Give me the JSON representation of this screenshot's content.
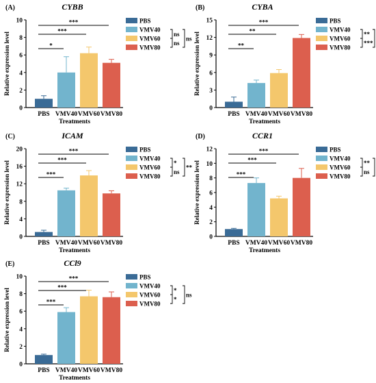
{
  "colors": {
    "PBS": "#3a6b96",
    "VMV40": "#72b4cd",
    "VMV60": "#f4c76c",
    "VMV80": "#dc5f4e",
    "axis": "#000000"
  },
  "chart_data": [
    {
      "type": "bar",
      "panel_label": "(A)",
      "title": "CYBB",
      "xlabel": "Treatments",
      "ylabel": "Relative expression level",
      "categories": [
        "PBS",
        "VMV40",
        "VMV60",
        "VMV80"
      ],
      "values": [
        1.0,
        4.0,
        6.2,
        5.1
      ],
      "errors": [
        0.35,
        1.8,
        0.7,
        0.4
      ],
      "ylim": [
        0,
        10
      ],
      "yticks": [
        "0",
        "2",
        "4",
        "6",
        "8",
        "10"
      ],
      "legend": [
        "PBS",
        "VMV40",
        "VMV60",
        "VMV80"
      ],
      "legend_position": "top-right",
      "significance": [
        {
          "from": "PBS",
          "to": "VMV40",
          "label": "*"
        },
        {
          "from": "PBS",
          "to": "VMV60",
          "label": "***"
        },
        {
          "from": "PBS",
          "to": "VMV80",
          "label": "***"
        }
      ],
      "legend_brackets": [
        {
          "from": "VMV40",
          "to": "VMV60",
          "label": "ns"
        },
        {
          "from": "VMV60",
          "to": "VMV80",
          "label": "ns"
        },
        {
          "from": "VMV40",
          "to": "VMV80",
          "label": "ns"
        }
      ]
    },
    {
      "type": "bar",
      "panel_label": "(B)",
      "title": "CYBA",
      "xlabel": "Treatments",
      "ylabel": "Relative expression level",
      "categories": [
        "PBS",
        "VMV40",
        "VMV60",
        "VMV80"
      ],
      "values": [
        1.0,
        4.2,
        5.9,
        11.9
      ],
      "errors": [
        0.8,
        0.5,
        0.6,
        0.6
      ],
      "ylim": [
        0,
        15
      ],
      "yticks": [
        "0",
        "3",
        "6",
        "9",
        "12",
        "15"
      ],
      "legend": [
        "PBS",
        "VMV40",
        "VMV60",
        "VMV80"
      ],
      "legend_position": "top-right",
      "significance": [
        {
          "from": "PBS",
          "to": "VMV40",
          "label": "**"
        },
        {
          "from": "PBS",
          "to": "VMV60",
          "label": "**"
        },
        {
          "from": "PBS",
          "to": "VMV80",
          "label": "***"
        }
      ],
      "legend_brackets": [
        {
          "from": "VMV40",
          "to": "VMV60",
          "label": "**"
        },
        {
          "from": "VMV60",
          "to": "VMV80",
          "label": "***"
        },
        {
          "from": "VMV40",
          "to": "VMV80",
          "label": "***"
        }
      ]
    },
    {
      "type": "bar",
      "panel_label": "(C)",
      "title": "ICAM",
      "xlabel": "Treatments",
      "ylabel": "Relative expression level",
      "categories": [
        "PBS",
        "VMV40",
        "VMV60",
        "VMV80"
      ],
      "values": [
        1.0,
        10.5,
        13.9,
        9.8
      ],
      "errors": [
        0.4,
        0.5,
        1.1,
        0.6
      ],
      "ylim": [
        0,
        20
      ],
      "yticks": [
        "0",
        "4",
        "8",
        "12",
        "16",
        "20"
      ],
      "legend": [
        "PBS",
        "VMV40",
        "VMV60",
        "VMV80"
      ],
      "legend_position": "top-right",
      "significance": [
        {
          "from": "PBS",
          "to": "VMV40",
          "label": "***"
        },
        {
          "from": "PBS",
          "to": "VMV60",
          "label": "***"
        },
        {
          "from": "PBS",
          "to": "VMV80",
          "label": "***"
        }
      ],
      "legend_brackets": [
        {
          "from": "VMV40",
          "to": "VMV60",
          "label": "*"
        },
        {
          "from": "VMV60",
          "to": "VMV80",
          "label": "ns"
        },
        {
          "from": "VMV40",
          "to": "VMV80",
          "label": "**"
        }
      ]
    },
    {
      "type": "bar",
      "panel_label": "(D)",
      "title": "CCR1",
      "xlabel": "Treatments",
      "ylabel": "Relative expression level",
      "categories": [
        "PBS",
        "VMV40",
        "VMV60",
        "VMV80"
      ],
      "values": [
        1.0,
        7.3,
        5.2,
        8.0
      ],
      "errors": [
        0.1,
        0.7,
        0.3,
        1.3
      ],
      "ylim": [
        0,
        12
      ],
      "yticks": [
        "0",
        "2",
        "4",
        "6",
        "8",
        "10",
        "12"
      ],
      "legend": [
        "PBS",
        "VMV40",
        "VMV60",
        "VMV80"
      ],
      "legend_position": "top-right",
      "significance": [
        {
          "from": "PBS",
          "to": "VMV40",
          "label": "***"
        },
        {
          "from": "PBS",
          "to": "VMV60",
          "label": "***"
        },
        {
          "from": "PBS",
          "to": "VMV80",
          "label": "***"
        }
      ],
      "legend_brackets": [
        {
          "from": "VMV40",
          "to": "VMV60",
          "label": "**"
        },
        {
          "from": "VMV60",
          "to": "VMV80",
          "label": "ns"
        },
        {
          "from": "VMV40",
          "to": "VMV80",
          "label": "*"
        }
      ]
    },
    {
      "type": "bar",
      "panel_label": "(E)",
      "title": "CCl9",
      "xlabel": "Treatments",
      "ylabel": "Relative expression level",
      "categories": [
        "PBS",
        "VMV40",
        "VMV60",
        "VMV80"
      ],
      "values": [
        1.0,
        5.9,
        7.7,
        7.6
      ],
      "errors": [
        0.1,
        0.5,
        0.7,
        0.6
      ],
      "ylim": [
        0,
        10
      ],
      "yticks": [
        "0",
        "2",
        "4",
        "6",
        "8",
        "10"
      ],
      "legend": [
        "PBS",
        "VMV40",
        "VMV60",
        "VMV80"
      ],
      "legend_position": "top-right",
      "significance": [
        {
          "from": "PBS",
          "to": "VMV40",
          "label": "***"
        },
        {
          "from": "PBS",
          "to": "VMV60",
          "label": "***"
        },
        {
          "from": "PBS",
          "to": "VMV80",
          "label": "***"
        }
      ],
      "legend_brackets": [
        {
          "from": "VMV40",
          "to": "VMV60",
          "label": "*"
        },
        {
          "from": "VMV60",
          "to": "VMV80",
          "label": "*"
        },
        {
          "from": "VMV40",
          "to": "VMV80",
          "label": "ns"
        }
      ]
    }
  ]
}
